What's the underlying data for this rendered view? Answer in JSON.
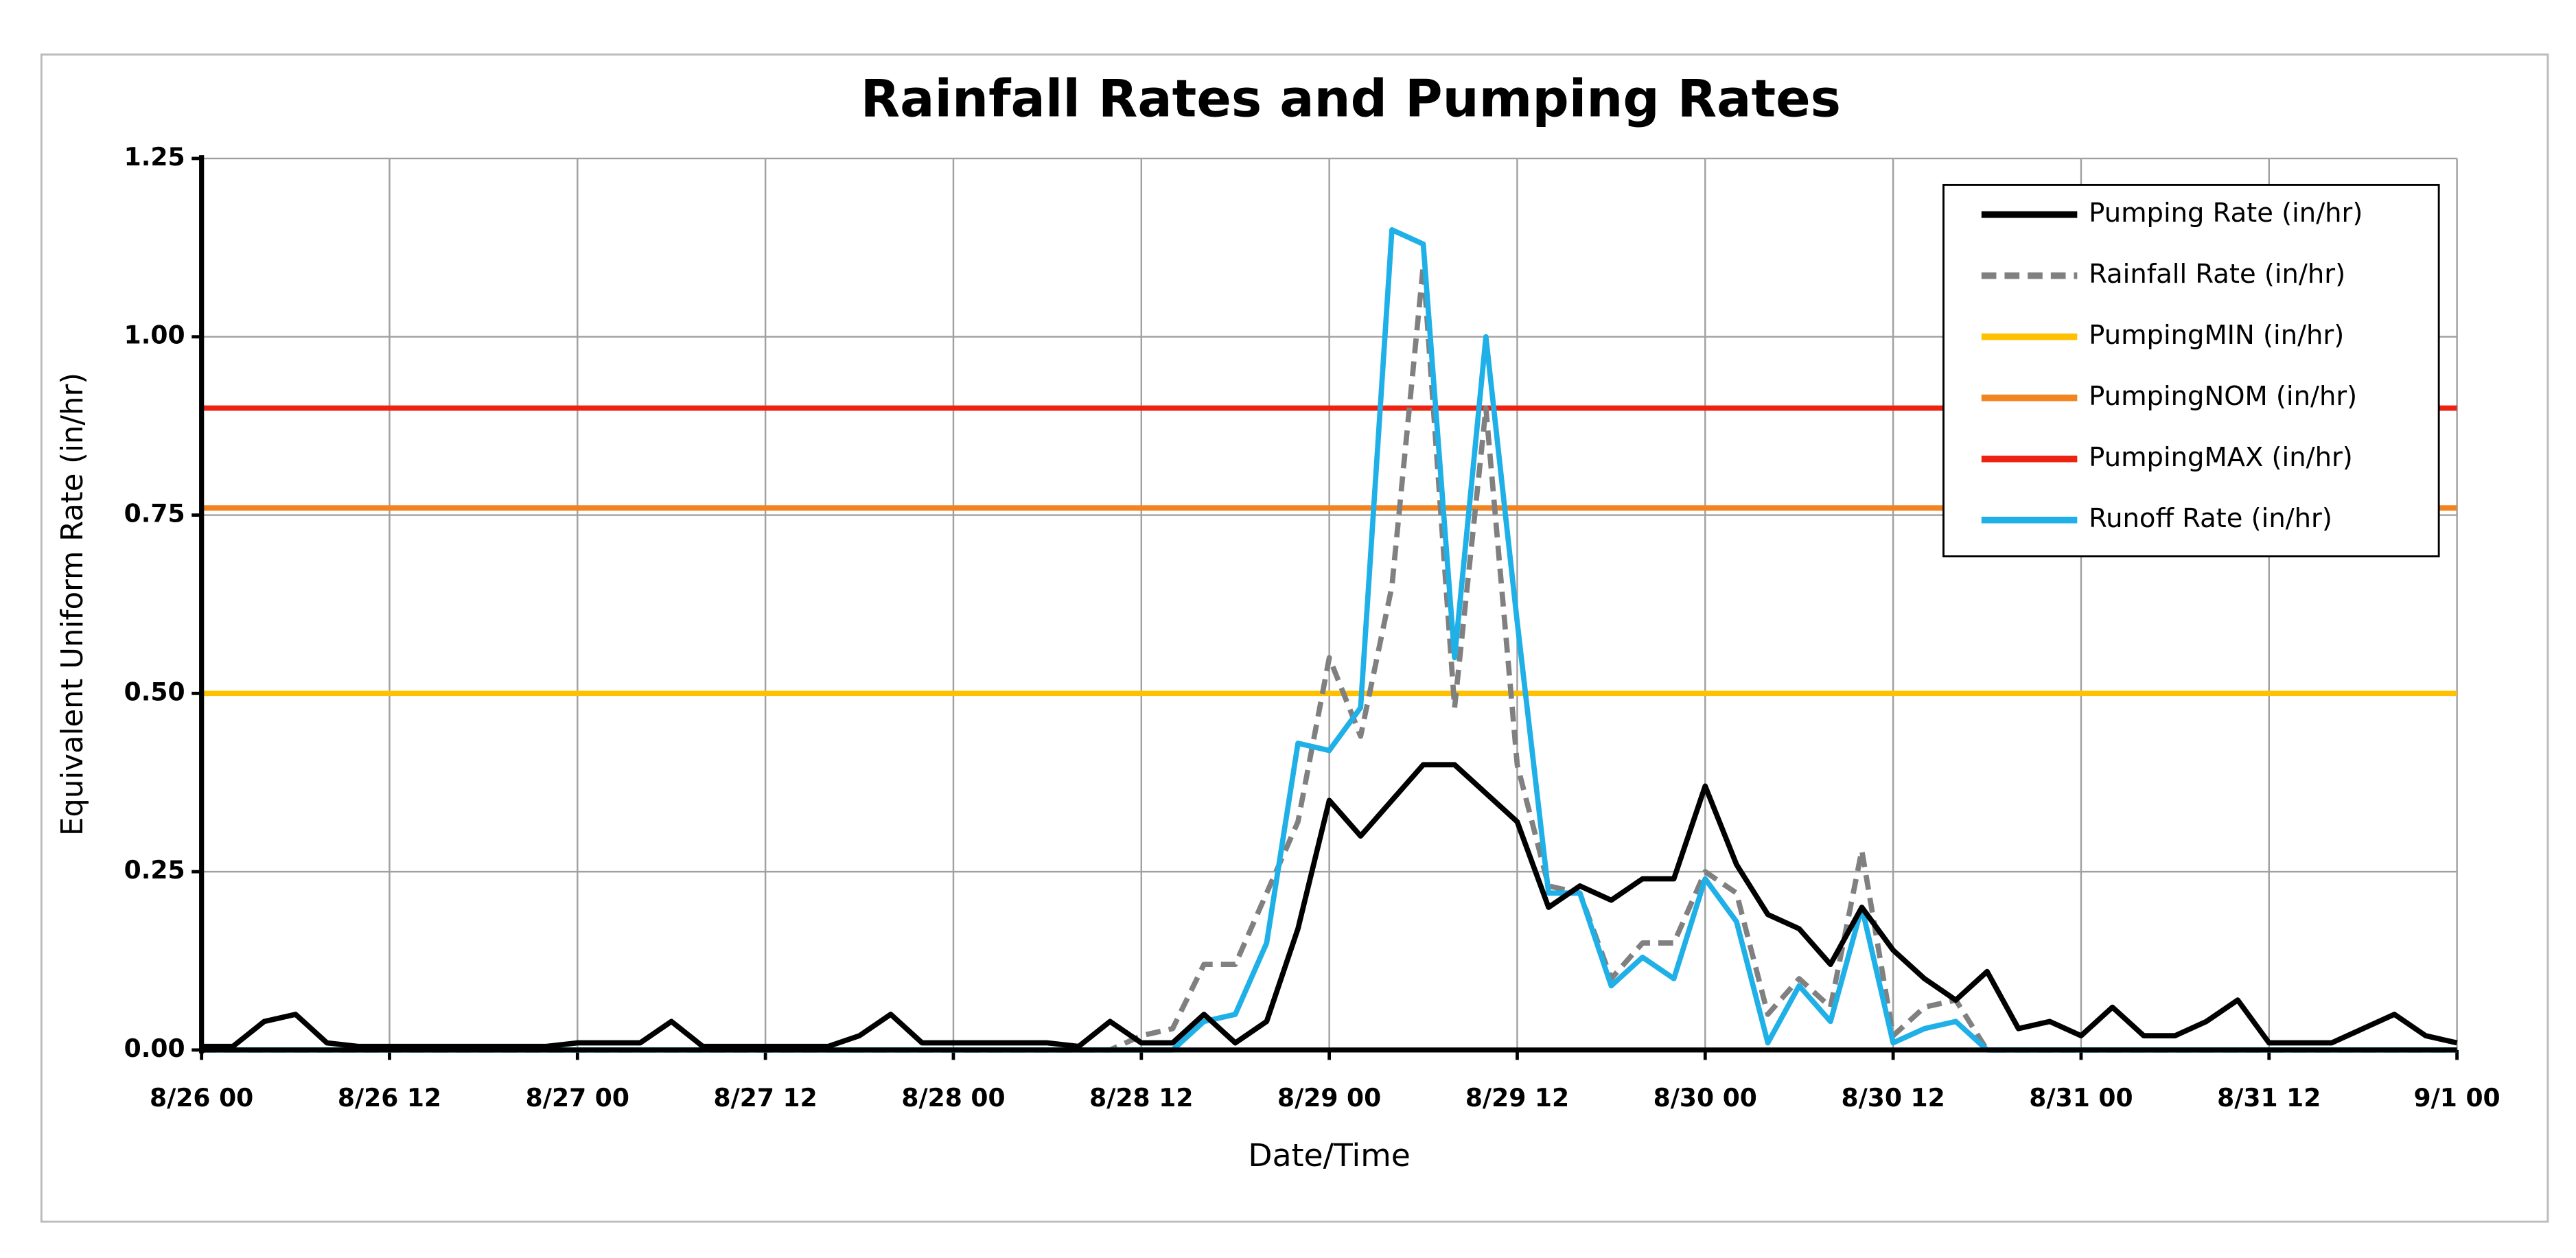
{
  "chart_data": {
    "type": "line",
    "title": "Rainfall Rates and Pumping Rates",
    "x_label": "Date/Time",
    "y_label": "Equivalent Uniform Rate (in/hr)",
    "x": [
      "8/26 00",
      "8/26 02",
      "8/26 04",
      "8/26 06",
      "8/26 08",
      "8/26 10",
      "8/26 12",
      "8/26 14",
      "8/26 16",
      "8/26 18",
      "8/26 20",
      "8/26 22",
      "8/27 00",
      "8/27 02",
      "8/27 04",
      "8/27 06",
      "8/27 08",
      "8/27 10",
      "8/27 12",
      "8/27 14",
      "8/27 16",
      "8/27 18",
      "8/27 20",
      "8/27 22",
      "8/28 00",
      "8/28 02",
      "8/28 04",
      "8/28 06",
      "8/28 08",
      "8/28 10",
      "8/28 12",
      "8/28 14",
      "8/28 16",
      "8/28 18",
      "8/28 20",
      "8/28 22",
      "8/29 00",
      "8/29 02",
      "8/29 04",
      "8/29 06",
      "8/29 08",
      "8/29 10",
      "8/29 12",
      "8/29 14",
      "8/29 16",
      "8/29 18",
      "8/29 20",
      "8/29 22",
      "8/30 00",
      "8/30 02",
      "8/30 04",
      "8/30 06",
      "8/30 08",
      "8/30 10",
      "8/30 12",
      "8/30 14",
      "8/30 16",
      "8/30 18",
      "8/30 20",
      "8/30 22",
      "8/31 00",
      "8/31 02",
      "8/31 04",
      "8/31 06",
      "8/31 08",
      "8/31 10",
      "8/31 12",
      "8/31 14",
      "8/31 16",
      "8/31 18",
      "8/31 20",
      "8/31 22",
      "9/1 00"
    ],
    "xticks": [
      "8/26 00",
      "8/26 12",
      "8/27 00",
      "8/27 12",
      "8/28 00",
      "8/28 12",
      "8/29 00",
      "8/29 12",
      "8/30 00",
      "8/30 12",
      "8/31 00",
      "8/31 12",
      "9/1 00"
    ],
    "ylim": [
      0,
      1.25
    ],
    "yticks": [
      {
        "value": 0,
        "label": "0.00"
      },
      {
        "value": 0.25,
        "label": "0.25"
      },
      {
        "value": 0.5,
        "label": "0.50"
      },
      {
        "value": 0.75,
        "label": "0.75"
      },
      {
        "value": 1,
        "label": "1.00"
      },
      {
        "value": 1.25,
        "label": "1.25"
      }
    ],
    "grid": true,
    "legend": "upper right",
    "series": [
      {
        "name": "Pumping Rate (in/hr)",
        "color": "#000000",
        "values": [
          0.005,
          0.005,
          0.04,
          0.05,
          0.01,
          0.005,
          0.005,
          0.005,
          0.005,
          0.005,
          0.005,
          0.005,
          0.01,
          0.01,
          0.01,
          0.04,
          0.005,
          0.005,
          0.005,
          0.005,
          0.005,
          0.02,
          0.05,
          0.01,
          0.01,
          0.01,
          0.01,
          0.01,
          0.005,
          0.04,
          0.01,
          0.01,
          0.05,
          0.01,
          0.04,
          0.17,
          0.35,
          0.3,
          0.35,
          0.4,
          0.4,
          0.36,
          0.32,
          0.2,
          0.23,
          0.21,
          0.24,
          0.24,
          0.37,
          0.26,
          0.19,
          0.17,
          0.12,
          0.2,
          0.14,
          0.1,
          0.07,
          0.11,
          0.03,
          0.04,
          0.02,
          0.06,
          0.02,
          0.02,
          0.04,
          0.07,
          0.01,
          0.01,
          0.01,
          0.03,
          0.05,
          0.02,
          0.01
        ]
      },
      {
        "name": "Rainfall Rate (in/hr)",
        "color": "#808080",
        "dashed": true,
        "values": [
          0,
          0,
          0,
          0,
          0,
          0,
          0,
          0,
          0,
          0,
          0,
          0,
          0,
          0,
          0,
          0,
          0,
          0,
          0,
          0,
          0,
          0,
          0,
          0,
          0,
          0,
          0,
          0,
          0,
          0,
          0.02,
          0.03,
          0.12,
          0.12,
          0.22,
          0.32,
          0.55,
          0.44,
          0.65,
          1.1,
          0.48,
          0.9,
          0.4,
          0.23,
          0.22,
          0.1,
          0.15,
          0.15,
          0.25,
          0.22,
          0.05,
          0.1,
          0.06,
          0.28,
          0.02,
          0.06,
          0.07,
          0,
          0,
          0,
          0,
          0,
          0,
          0,
          0,
          0,
          0,
          0,
          0,
          0,
          0,
          0,
          0
        ]
      },
      {
        "name": "PumpingMIN (in/hr)",
        "color": "#ffc000",
        "value": 0.5
      },
      {
        "name": "PumpingNOM (in/hr)",
        "color": "#f28420",
        "value": 0.76
      },
      {
        "name": "PumpingMAX (in/hr)",
        "color": "#ee2211",
        "value": 0.9
      },
      {
        "name": "Runoff Rate (in/hr)",
        "color": "#1fb0e8",
        "values": [
          0,
          0,
          0,
          0,
          0,
          0,
          0,
          0,
          0,
          0,
          0,
          0,
          0,
          0,
          0,
          0,
          0,
          0,
          0,
          0,
          0,
          0,
          0,
          0,
          0,
          0,
          0,
          0,
          0,
          0,
          0,
          0,
          0.04,
          0.05,
          0.15,
          0.43,
          0.42,
          0.48,
          1.15,
          1.13,
          0.55,
          1.0,
          0.6,
          0.22,
          0.22,
          0.09,
          0.13,
          0.1,
          0.24,
          0.18,
          0.01,
          0.09,
          0.04,
          0.2,
          0.01,
          0.03,
          0.04,
          0,
          0,
          0,
          0,
          0,
          0,
          0,
          0,
          0,
          0,
          0,
          0,
          0,
          0,
          0,
          0
        ]
      }
    ]
  }
}
